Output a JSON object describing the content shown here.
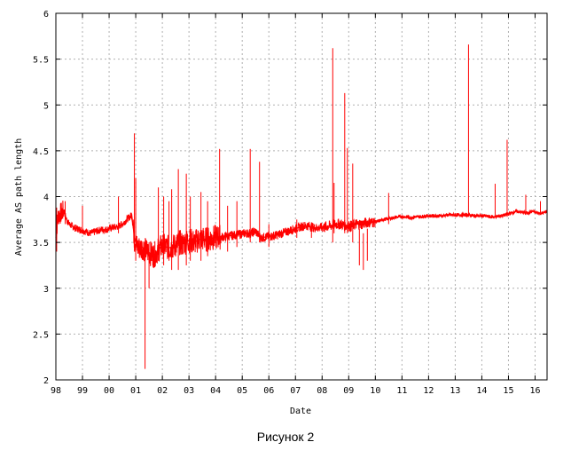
{
  "caption": "Рисунок 2",
  "chart_data": {
    "type": "line",
    "title": "",
    "xlabel": "Date",
    "ylabel": "Average AS path length",
    "xlim": [
      1998.0,
      2016.45
    ],
    "ylim": [
      2,
      6
    ],
    "grid": true,
    "line_color": "#ff0000",
    "x_ticks": [
      {
        "x": 1998,
        "label": "98"
      },
      {
        "x": 1999,
        "label": "99"
      },
      {
        "x": 2000,
        "label": "00"
      },
      {
        "x": 2001,
        "label": "01"
      },
      {
        "x": 2002,
        "label": "02"
      },
      {
        "x": 2003,
        "label": "03"
      },
      {
        "x": 2004,
        "label": "04"
      },
      {
        "x": 2005,
        "label": "05"
      },
      {
        "x": 2006,
        "label": "06"
      },
      {
        "x": 2007,
        "label": "07"
      },
      {
        "x": 2008,
        "label": "08"
      },
      {
        "x": 2009,
        "label": "09"
      },
      {
        "x": 2010,
        "label": "10"
      },
      {
        "x": 2011,
        "label": "11"
      },
      {
        "x": 2012,
        "label": "12"
      },
      {
        "x": 2013,
        "label": "13"
      },
      {
        "x": 2014,
        "label": "14"
      },
      {
        "x": 2015,
        "label": "15"
      },
      {
        "x": 2016,
        "label": "16"
      }
    ],
    "y_ticks": [
      {
        "y": 2,
        "label": "2"
      },
      {
        "y": 2.5,
        "label": "2.5"
      },
      {
        "y": 3,
        "label": "3"
      },
      {
        "y": 3.5,
        "label": "3.5"
      },
      {
        "y": 4,
        "label": "4"
      },
      {
        "y": 4.5,
        "label": "4.5"
      },
      {
        "y": 5,
        "label": "5"
      },
      {
        "y": 5.5,
        "label": "5.5"
      },
      {
        "y": 6,
        "label": "6"
      }
    ],
    "series": [
      {
        "points": [
          [
            1998.0,
            3.55
          ],
          [
            1998.05,
            3.7
          ],
          [
            1998.1,
            3.8
          ],
          [
            1998.2,
            3.82
          ],
          [
            1998.3,
            3.85
          ],
          [
            1998.4,
            3.75
          ],
          [
            1998.5,
            3.7
          ],
          [
            1998.7,
            3.66
          ],
          [
            1998.9,
            3.64
          ],
          [
            1999.1,
            3.62
          ],
          [
            1999.3,
            3.6
          ],
          [
            1999.5,
            3.62
          ],
          [
            1999.7,
            3.64
          ],
          [
            1999.9,
            3.64
          ],
          [
            2000.1,
            3.66
          ],
          [
            2000.3,
            3.67
          ],
          [
            2000.5,
            3.7
          ],
          [
            2000.7,
            3.76
          ],
          [
            2000.85,
            3.8
          ],
          [
            2000.95,
            3.55
          ],
          [
            2001.05,
            3.45
          ],
          [
            2001.15,
            3.44
          ],
          [
            2001.25,
            3.45
          ],
          [
            2001.35,
            3.42
          ],
          [
            2001.45,
            3.4
          ],
          [
            2001.55,
            3.38
          ],
          [
            2001.65,
            3.36
          ],
          [
            2001.75,
            3.38
          ],
          [
            2001.85,
            3.42
          ],
          [
            2001.95,
            3.45
          ],
          [
            2002.05,
            3.46
          ],
          [
            2002.15,
            3.45
          ],
          [
            2002.25,
            3.44
          ],
          [
            2002.35,
            3.45
          ],
          [
            2002.45,
            3.46
          ],
          [
            2002.55,
            3.48
          ],
          [
            2002.65,
            3.5
          ],
          [
            2002.75,
            3.48
          ],
          [
            2002.85,
            3.5
          ],
          [
            2002.95,
            3.52
          ],
          [
            2003.05,
            3.52
          ],
          [
            2003.2,
            3.5
          ],
          [
            2003.35,
            3.53
          ],
          [
            2003.5,
            3.54
          ],
          [
            2003.7,
            3.53
          ],
          [
            2003.9,
            3.55
          ],
          [
            2004.1,
            3.56
          ],
          [
            2004.3,
            3.56
          ],
          [
            2004.5,
            3.57
          ],
          [
            2004.7,
            3.58
          ],
          [
            2004.9,
            3.59
          ],
          [
            2005.1,
            3.6
          ],
          [
            2005.3,
            3.6
          ],
          [
            2005.5,
            3.62
          ],
          [
            2005.7,
            3.55
          ],
          [
            2005.9,
            3.56
          ],
          [
            2006.1,
            3.57
          ],
          [
            2006.3,
            3.58
          ],
          [
            2006.5,
            3.6
          ],
          [
            2006.7,
            3.62
          ],
          [
            2006.9,
            3.64
          ],
          [
            2007.1,
            3.66
          ],
          [
            2007.3,
            3.68
          ],
          [
            2007.5,
            3.68
          ],
          [
            2007.7,
            3.66
          ],
          [
            2007.9,
            3.66
          ],
          [
            2008.1,
            3.67
          ],
          [
            2008.3,
            3.68
          ],
          [
            2008.5,
            3.7
          ],
          [
            2008.7,
            3.7
          ],
          [
            2008.9,
            3.68
          ],
          [
            2009.1,
            3.68
          ],
          [
            2009.3,
            3.7
          ],
          [
            2009.5,
            3.7
          ],
          [
            2009.7,
            3.72
          ],
          [
            2009.9,
            3.72
          ],
          [
            2010.1,
            3.73
          ],
          [
            2010.3,
            3.75
          ],
          [
            2010.5,
            3.76
          ],
          [
            2010.7,
            3.77
          ],
          [
            2010.9,
            3.78
          ],
          [
            2011.1,
            3.78
          ],
          [
            2011.3,
            3.77
          ],
          [
            2011.5,
            3.78
          ],
          [
            2011.7,
            3.78
          ],
          [
            2011.9,
            3.79
          ],
          [
            2012.1,
            3.79
          ],
          [
            2012.3,
            3.79
          ],
          [
            2012.5,
            3.79
          ],
          [
            2012.7,
            3.8
          ],
          [
            2012.9,
            3.8
          ],
          [
            2013.1,
            3.8
          ],
          [
            2013.3,
            3.8
          ],
          [
            2013.5,
            3.8
          ],
          [
            2013.7,
            3.79
          ],
          [
            2013.9,
            3.79
          ],
          [
            2014.1,
            3.79
          ],
          [
            2014.3,
            3.78
          ],
          [
            2014.5,
            3.78
          ],
          [
            2014.7,
            3.79
          ],
          [
            2014.9,
            3.8
          ],
          [
            2015.1,
            3.82
          ],
          [
            2015.3,
            3.84
          ],
          [
            2015.5,
            3.83
          ],
          [
            2015.7,
            3.82
          ],
          [
            2015.9,
            3.84
          ],
          [
            2016.1,
            3.82
          ],
          [
            2016.3,
            3.82
          ],
          [
            2016.45,
            3.84
          ]
        ]
      }
    ],
    "spikes": [
      [
        1998.03,
        3.4,
        3.88
      ],
      [
        1998.35,
        3.7,
        3.95
      ],
      [
        1999.0,
        3.6,
        3.9
      ],
      [
        2000.35,
        3.6,
        4.0
      ],
      [
        2000.95,
        3.4,
        4.69
      ],
      [
        2001.0,
        3.3,
        4.2
      ],
      [
        2001.35,
        2.12,
        3.5
      ],
      [
        2001.5,
        3.0,
        3.5
      ],
      [
        2001.85,
        3.3,
        4.1
      ],
      [
        2002.05,
        3.25,
        4.0
      ],
      [
        2002.25,
        3.3,
        3.95
      ],
      [
        2002.35,
        3.2,
        4.08
      ],
      [
        2002.6,
        3.2,
        4.3
      ],
      [
        2002.9,
        3.25,
        4.25
      ],
      [
        2003.05,
        3.3,
        4.0
      ],
      [
        2003.45,
        3.3,
        4.05
      ],
      [
        2003.7,
        3.35,
        3.95
      ],
      [
        2004.15,
        3.5,
        4.52
      ],
      [
        2004.45,
        3.4,
        3.9
      ],
      [
        2004.8,
        3.45,
        3.95
      ],
      [
        2005.3,
        3.5,
        4.52
      ],
      [
        2005.65,
        3.5,
        4.38
      ],
      [
        2006.0,
        3.45,
        3.7
      ],
      [
        2007.05,
        3.55,
        3.75
      ],
      [
        2007.6,
        3.55,
        3.72
      ],
      [
        2008.4,
        3.5,
        5.62
      ],
      [
        2008.45,
        3.6,
        4.15
      ],
      [
        2008.85,
        3.6,
        5.13
      ],
      [
        2008.95,
        3.6,
        4.53
      ],
      [
        2009.15,
        3.5,
        4.36
      ],
      [
        2009.4,
        3.25,
        3.65
      ],
      [
        2009.55,
        3.2,
        3.6
      ],
      [
        2009.7,
        3.3,
        3.65
      ],
      [
        2010.5,
        3.7,
        4.04
      ],
      [
        2013.5,
        3.78,
        5.66
      ],
      [
        2014.5,
        3.77,
        4.14
      ],
      [
        2014.95,
        3.78,
        4.62
      ],
      [
        2015.65,
        3.8,
        4.02
      ],
      [
        2016.2,
        3.8,
        3.95
      ]
    ]
  }
}
